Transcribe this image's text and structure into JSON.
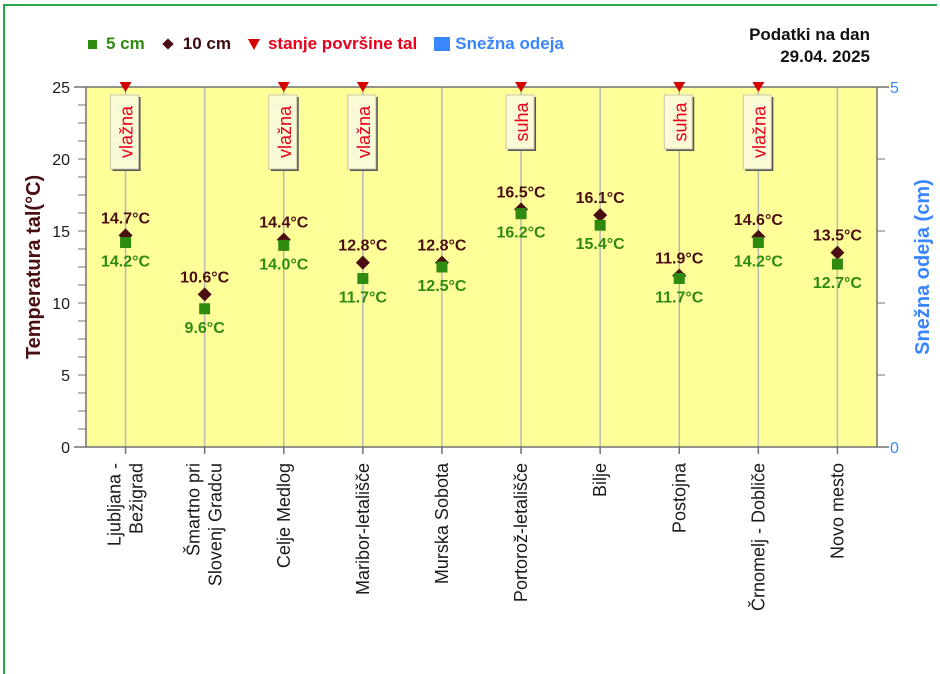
{
  "header": {
    "date_line1": "Podatki na dan",
    "date_line2": "29.04. 2025"
  },
  "legend": [
    {
      "label": "5 cm",
      "symbol": "green-square",
      "color": "#2e8b10"
    },
    {
      "label": "10 cm",
      "symbol": "dark-diamond",
      "color": "#4a0f12"
    },
    {
      "label": "stanje površine tal",
      "symbol": "red-triangle",
      "color": "#e8001c"
    },
    {
      "label": "Snežna odeja",
      "symbol": "blue-square",
      "color": "#3a86ff"
    }
  ],
  "axes": {
    "left_label": "Temperatura tal(°C)",
    "right_label": "Snežna odeja (cm)",
    "left_ticks": [
      "0",
      "5",
      "10",
      "15",
      "20",
      "25"
    ],
    "right_ticks": [
      "0",
      "5"
    ]
  },
  "colors": {
    "plot_bg": "#ffff99",
    "series_5cm": "#2e8b10",
    "series_10cm": "#4a0f12",
    "surface": "#e8001c",
    "snow": "#3a86ff",
    "frame": "#22a84a"
  },
  "chart_data": {
    "type": "scatter",
    "title": "",
    "xlabel": "",
    "ylabel": "Temperatura tal(°C)",
    "y2label": "Snežna odeja (cm)",
    "ylim": [
      0,
      25
    ],
    "y2lim": [
      0,
      5
    ],
    "grid": "vertical",
    "legend_position": "top",
    "categories": [
      "Ljubljana - Bežigrad",
      "Šmartno pri Slovenj Gradcu",
      "Celje Medlog",
      "Maribor-letališče",
      "Murska Sobota",
      "Portorož-letališče",
      "Bilje",
      "Postojna",
      "Črnomelj - Dobliče",
      "Novo mesto"
    ],
    "category_lines": [
      [
        "Ljubljana -",
        "Bežigrad"
      ],
      [
        "Šmartno pri",
        "Slovenj Gradcu"
      ],
      [
        "Celje Medlog"
      ],
      [
        "Maribor-letališče"
      ],
      [
        "Murska Sobota"
      ],
      [
        "Portorož-letališče"
      ],
      [
        "Bilje"
      ],
      [
        "Postojna"
      ],
      [
        "Črnomelj - Dobliče"
      ],
      [
        "Novo mesto"
      ]
    ],
    "series": [
      {
        "name": "5 cm",
        "values": [
          14.2,
          9.6,
          14.0,
          11.7,
          12.5,
          16.2,
          15.4,
          11.7,
          14.2,
          12.7
        ],
        "labels": [
          "14.2°C",
          "9.6°C",
          "14.0°C",
          "11.7°C",
          "12.5°C",
          "16.2°C",
          "15.4°C",
          "11.7°C",
          "14.2°C",
          "12.7°C"
        ]
      },
      {
        "name": "10 cm",
        "values": [
          14.7,
          10.6,
          14.4,
          12.8,
          12.8,
          16.5,
          16.1,
          11.9,
          14.6,
          13.5
        ],
        "labels": [
          "14.7°C",
          "10.6°C",
          "14.4°C",
          "12.8°C",
          "12.8°C",
          "16.5°C",
          "16.1°C",
          "11.9°C",
          "14.6°C",
          "13.5°C"
        ]
      },
      {
        "name": "stanje površine tal",
        "values": [
          "vlažna",
          null,
          "vlažna",
          "vlažna",
          null,
          "suha",
          null,
          "suha",
          "vlažna",
          null
        ]
      },
      {
        "name": "Snežna odeja",
        "values": [
          null,
          null,
          null,
          null,
          null,
          null,
          null,
          null,
          null,
          null
        ]
      }
    ]
  }
}
